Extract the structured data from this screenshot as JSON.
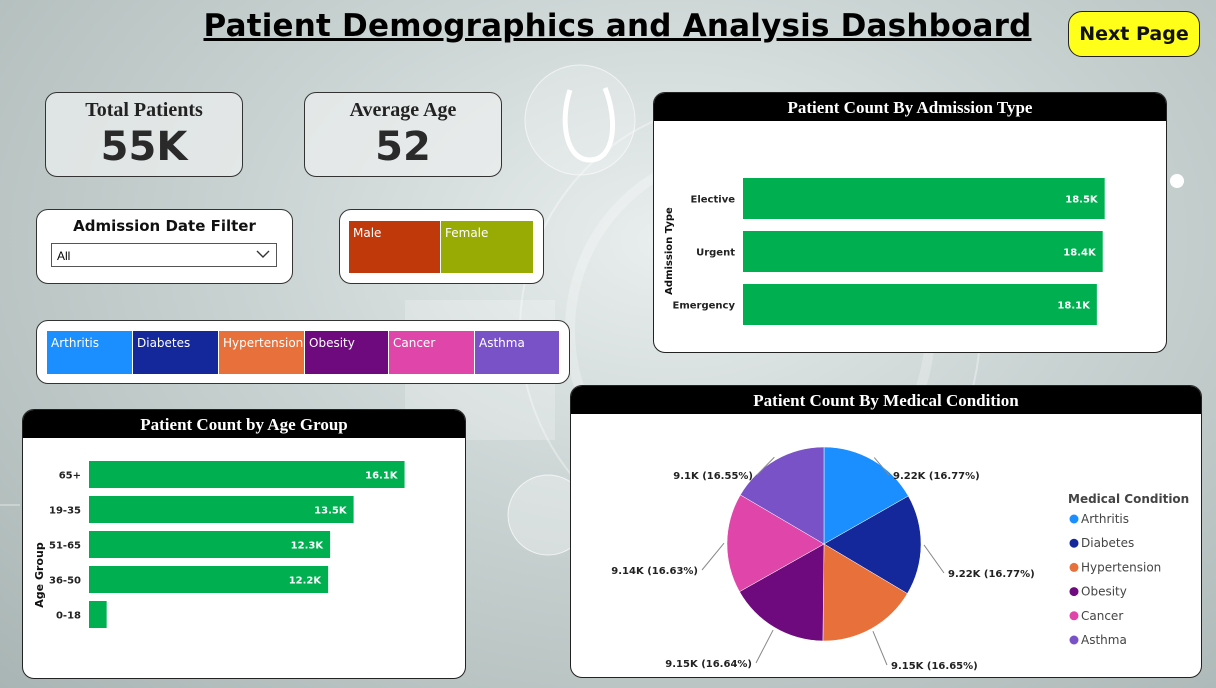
{
  "title": "Patient Demographics and Analysis Dashboard",
  "next_button": "Next Page",
  "kpis": {
    "total_label": "Total Patients",
    "total_value": "55K",
    "avg_label": "Average Age",
    "avg_value": "52"
  },
  "filter": {
    "title": "Admission Date Filter",
    "value": "All"
  },
  "gender_tiles": [
    {
      "label": "Male",
      "color": "#c0390b"
    },
    {
      "label": "Female",
      "color": "#98ab05"
    }
  ],
  "condition_tiles": [
    {
      "label": "Arthritis",
      "color": "#1b8fff"
    },
    {
      "label": "Diabetes",
      "color": "#14279b"
    },
    {
      "label": "Hypertension",
      "color": "#e8703a"
    },
    {
      "label": "Obesity",
      "color": "#6e0a7e"
    },
    {
      "label": "Cancer",
      "color": "#e045aa"
    },
    {
      "label": "Asthma",
      "color": "#7a52c8"
    }
  ],
  "colors": {
    "bar": "#00b050"
  },
  "chart_data": [
    {
      "type": "bar",
      "title": "Patient Count By Admission Type",
      "orientation": "horizontal",
      "ylabel": "Admission Type",
      "categories": [
        "Elective",
        "Urgent",
        "Emergency"
      ],
      "values": [
        18500,
        18400,
        18100
      ],
      "data_labels": [
        "18.5K",
        "18.4K",
        "18.1K"
      ],
      "xlim": [
        0,
        20000
      ],
      "xticks": [
        "0K",
        "5K",
        "10K",
        "15K",
        "20K"
      ]
    },
    {
      "type": "bar",
      "title": "Patient Count by Age Group",
      "orientation": "horizontal",
      "ylabel": "Age Group",
      "categories": [
        "65+",
        "19-35",
        "51-65",
        "36-50",
        "0-18"
      ],
      "values": [
        16100,
        13500,
        12300,
        12200,
        900
      ],
      "data_labels": [
        "16.1K",
        "13.5K",
        "12.3K",
        "12.2K",
        ""
      ],
      "xlim": [
        0,
        17500
      ],
      "xticks": [
        "0K",
        "5K",
        "10K",
        "15K"
      ]
    },
    {
      "type": "pie",
      "title": "Patient Count By Medical Condition",
      "legend_title": "Medical Condition",
      "legend_position": "right",
      "categories": [
        "Arthritis",
        "Diabetes",
        "Hypertension",
        "Obesity",
        "Cancer",
        "Asthma"
      ],
      "values": [
        9220,
        9220,
        9150,
        9150,
        9140,
        9100
      ],
      "percentages": [
        16.77,
        16.77,
        16.65,
        16.64,
        16.63,
        16.55
      ],
      "data_labels": [
        "9.22K (16.77%)",
        "9.22K (16.77%)",
        "9.15K (16.65%)",
        "9.15K (16.64%)",
        "9.14K (16.63%)",
        "9.1K (16.55%)"
      ],
      "colors": [
        "#1b8fff",
        "#14279b",
        "#e8703a",
        "#6e0a7e",
        "#e045aa",
        "#7a52c8"
      ]
    }
  ]
}
